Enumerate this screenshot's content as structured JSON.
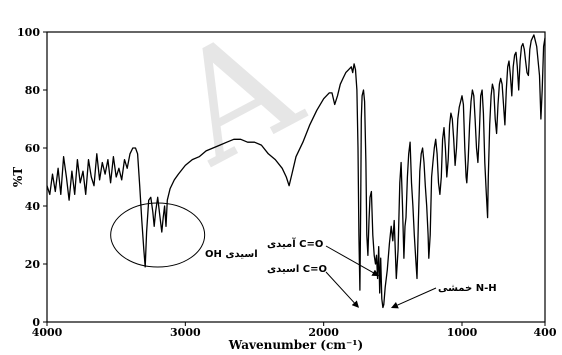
{
  "chart_data": {
    "type": "line",
    "title": "",
    "xlabel": "Wavenumber (cm⁻¹)",
    "ylabel": "%T",
    "xlim": [
      4000,
      400
    ],
    "ylim": [
      0,
      100
    ],
    "xticks": [
      4000,
      3000,
      2000,
      1000,
      400
    ],
    "yticks": [
      0,
      20,
      40,
      60,
      80,
      100
    ],
    "grid": false,
    "watermark": "A",
    "series": [
      {
        "points": [
          [
            4000,
            47
          ],
          [
            3980,
            44
          ],
          [
            3960,
            51
          ],
          [
            3940,
            45
          ],
          [
            3920,
            53
          ],
          [
            3900,
            44
          ],
          [
            3880,
            57
          ],
          [
            3860,
            50
          ],
          [
            3840,
            42
          ],
          [
            3820,
            52
          ],
          [
            3800,
            44
          ],
          [
            3780,
            56
          ],
          [
            3760,
            48
          ],
          [
            3740,
            52
          ],
          [
            3720,
            44
          ],
          [
            3700,
            56
          ],
          [
            3680,
            50
          ],
          [
            3660,
            47
          ],
          [
            3640,
            58
          ],
          [
            3620,
            49
          ],
          [
            3600,
            55
          ],
          [
            3580,
            51
          ],
          [
            3560,
            56
          ],
          [
            3540,
            48
          ],
          [
            3520,
            57
          ],
          [
            3500,
            50
          ],
          [
            3480,
            53
          ],
          [
            3460,
            49
          ],
          [
            3440,
            56
          ],
          [
            3420,
            53
          ],
          [
            3400,
            58
          ],
          [
            3380,
            60
          ],
          [
            3360,
            60
          ],
          [
            3345,
            58
          ],
          [
            3330,
            47
          ],
          [
            3315,
            35
          ],
          [
            3300,
            25
          ],
          [
            3290,
            19
          ],
          [
            3280,
            31
          ],
          [
            3265,
            42
          ],
          [
            3250,
            43
          ],
          [
            3235,
            38
          ],
          [
            3225,
            33
          ],
          [
            3215,
            38
          ],
          [
            3200,
            43
          ],
          [
            3185,
            37
          ],
          [
            3170,
            31
          ],
          [
            3160,
            36
          ],
          [
            3150,
            40
          ],
          [
            3140,
            33
          ],
          [
            3130,
            42
          ],
          [
            3110,
            46
          ],
          [
            3080,
            49
          ],
          [
            3050,
            51
          ],
          [
            3000,
            54
          ],
          [
            2950,
            56
          ],
          [
            2900,
            57
          ],
          [
            2850,
            59
          ],
          [
            2800,
            60
          ],
          [
            2750,
            61
          ],
          [
            2700,
            62
          ],
          [
            2650,
            63
          ],
          [
            2600,
            63
          ],
          [
            2550,
            62
          ],
          [
            2500,
            62
          ],
          [
            2450,
            61
          ],
          [
            2400,
            58
          ],
          [
            2350,
            56
          ],
          [
            2300,
            53
          ],
          [
            2270,
            50
          ],
          [
            2250,
            47
          ],
          [
            2230,
            51
          ],
          [
            2200,
            57
          ],
          [
            2150,
            62
          ],
          [
            2100,
            68
          ],
          [
            2050,
            73
          ],
          [
            2000,
            77
          ],
          [
            1960,
            79
          ],
          [
            1940,
            79
          ],
          [
            1920,
            75
          ],
          [
            1900,
            78
          ],
          [
            1880,
            82
          ],
          [
            1860,
            84
          ],
          [
            1840,
            86
          ],
          [
            1820,
            87
          ],
          [
            1800,
            88
          ],
          [
            1790,
            86
          ],
          [
            1780,
            89
          ],
          [
            1770,
            87
          ],
          [
            1760,
            80
          ],
          [
            1752,
            60
          ],
          [
            1745,
            30
          ],
          [
            1738,
            11
          ],
          [
            1732,
            40
          ],
          [
            1728,
            70
          ],
          [
            1722,
            78
          ],
          [
            1712,
            80
          ],
          [
            1704,
            76
          ],
          [
            1695,
            55
          ],
          [
            1688,
            30
          ],
          [
            1680,
            23
          ],
          [
            1672,
            35
          ],
          [
            1665,
            43
          ],
          [
            1655,
            45
          ],
          [
            1645,
            30
          ],
          [
            1635,
            23
          ],
          [
            1625,
            20
          ],
          [
            1618,
            23
          ],
          [
            1610,
            15
          ],
          [
            1602,
            26
          ],
          [
            1595,
            10
          ],
          [
            1588,
            22
          ],
          [
            1580,
            8
          ],
          [
            1572,
            5
          ],
          [
            1565,
            6
          ],
          [
            1555,
            12
          ],
          [
            1540,
            18
          ],
          [
            1525,
            27
          ],
          [
            1512,
            33
          ],
          [
            1500,
            28
          ],
          [
            1490,
            35
          ],
          [
            1475,
            15
          ],
          [
            1462,
            25
          ],
          [
            1450,
            48
          ],
          [
            1440,
            55
          ],
          [
            1430,
            40
          ],
          [
            1420,
            22
          ],
          [
            1412,
            33
          ],
          [
            1405,
            36
          ],
          [
            1395,
            50
          ],
          [
            1385,
            58
          ],
          [
            1375,
            62
          ],
          [
            1365,
            48
          ],
          [
            1355,
            40
          ],
          [
            1345,
            30
          ],
          [
            1335,
            22
          ],
          [
            1325,
            15
          ],
          [
            1315,
            35
          ],
          [
            1305,
            52
          ],
          [
            1295,
            58
          ],
          [
            1285,
            60
          ],
          [
            1275,
            55
          ],
          [
            1265,
            47
          ],
          [
            1255,
            40
          ],
          [
            1245,
            30
          ],
          [
            1240,
            22
          ],
          [
            1230,
            30
          ],
          [
            1220,
            50
          ],
          [
            1210,
            55
          ],
          [
            1200,
            60
          ],
          [
            1190,
            63
          ],
          [
            1180,
            58
          ],
          [
            1170,
            48
          ],
          [
            1160,
            44
          ],
          [
            1150,
            50
          ],
          [
            1140,
            63
          ],
          [
            1130,
            67
          ],
          [
            1120,
            60
          ],
          [
            1110,
            50
          ],
          [
            1100,
            56
          ],
          [
            1090,
            68
          ],
          [
            1080,
            72
          ],
          [
            1070,
            70
          ],
          [
            1060,
            63
          ],
          [
            1050,
            54
          ],
          [
            1040,
            60
          ],
          [
            1030,
            70
          ],
          [
            1020,
            74
          ],
          [
            1010,
            76
          ],
          [
            1000,
            78
          ],
          [
            990,
            75
          ],
          [
            980,
            60
          ],
          [
            970,
            50
          ],
          [
            965,
            48
          ],
          [
            955,
            56
          ],
          [
            945,
            68
          ],
          [
            935,
            76
          ],
          [
            925,
            80
          ],
          [
            915,
            78
          ],
          [
            905,
            70
          ],
          [
            895,
            60
          ],
          [
            885,
            55
          ],
          [
            875,
            65
          ],
          [
            865,
            78
          ],
          [
            855,
            80
          ],
          [
            845,
            72
          ],
          [
            835,
            55
          ],
          [
            825,
            45
          ],
          [
            815,
            36
          ],
          [
            810,
            50
          ],
          [
            800,
            68
          ],
          [
            790,
            78
          ],
          [
            780,
            82
          ],
          [
            770,
            80
          ],
          [
            760,
            70
          ],
          [
            750,
            65
          ],
          [
            740,
            75
          ],
          [
            730,
            82
          ],
          [
            720,
            84
          ],
          [
            710,
            82
          ],
          [
            700,
            75
          ],
          [
            690,
            68
          ],
          [
            680,
            80
          ],
          [
            670,
            88
          ],
          [
            660,
            90
          ],
          [
            650,
            85
          ],
          [
            640,
            78
          ],
          [
            630,
            88
          ],
          [
            620,
            92
          ],
          [
            610,
            93
          ],
          [
            600,
            88
          ],
          [
            590,
            80
          ],
          [
            580,
            90
          ],
          [
            570,
            95
          ],
          [
            560,
            96
          ],
          [
            550,
            94
          ],
          [
            540,
            90
          ],
          [
            530,
            86
          ],
          [
            520,
            85
          ],
          [
            510,
            94
          ],
          [
            500,
            97
          ],
          [
            490,
            98
          ],
          [
            480,
            99
          ],
          [
            470,
            97
          ],
          [
            460,
            95
          ],
          [
            450,
            90
          ],
          [
            440,
            85
          ],
          [
            430,
            70
          ],
          [
            420,
            80
          ],
          [
            410,
            95
          ],
          [
            400,
            98
          ]
        ]
      }
    ],
    "annotations": [
      {
        "label": "OH اسیدی",
        "type": "circle",
        "center_x": 3200,
        "center_y": 30
      },
      {
        "label": "آمیدی C=O",
        "x": 1590,
        "y": 16
      },
      {
        "label": "اسیدی C=O",
        "x": 1735,
        "y": 12
      },
      {
        "label": "خمشی N-H",
        "x": 1550,
        "y": 6
      }
    ]
  }
}
